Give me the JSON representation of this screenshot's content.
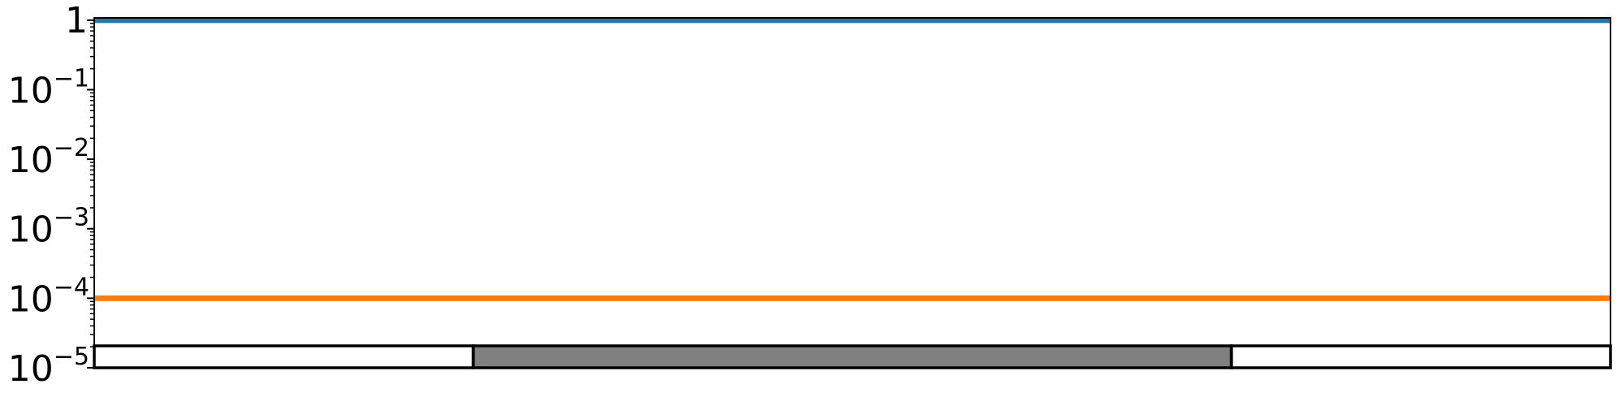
{
  "chart_data": {
    "type": "line",
    "title": "",
    "xlabel": "",
    "ylabel": "",
    "yscale": "log",
    "ylim": [
      1e-05,
      1.08
    ],
    "xlim": [
      0,
      1
    ],
    "grid": false,
    "x_ticks_visible": false,
    "y_ticks": [
      {
        "value": 1,
        "base": "1",
        "exp": ""
      },
      {
        "value": 0.1,
        "base": "10",
        "exp": "−1"
      },
      {
        "value": 0.01,
        "base": "10",
        "exp": "−2"
      },
      {
        "value": 0.001,
        "base": "10",
        "exp": "−3"
      },
      {
        "value": 0.0001,
        "base": "10",
        "exp": "−4"
      },
      {
        "value": 1e-05,
        "base": "10",
        "exp": "−5"
      }
    ],
    "series": [
      {
        "color": "#1f77b4",
        "x": [
          0,
          1
        ],
        "y": [
          1,
          1
        ]
      },
      {
        "color": "#ff7f0e",
        "x": [
          0,
          1
        ],
        "y": [
          0.0001,
          0.0001
        ]
      }
    ],
    "segments_bar": [
      {
        "start": 0.0,
        "end": 0.25,
        "color": "#ffffff"
      },
      {
        "start": 0.25,
        "end": 0.75,
        "color": "#808080"
      },
      {
        "start": 0.75,
        "end": 1.0,
        "color": "#ffffff"
      }
    ]
  }
}
